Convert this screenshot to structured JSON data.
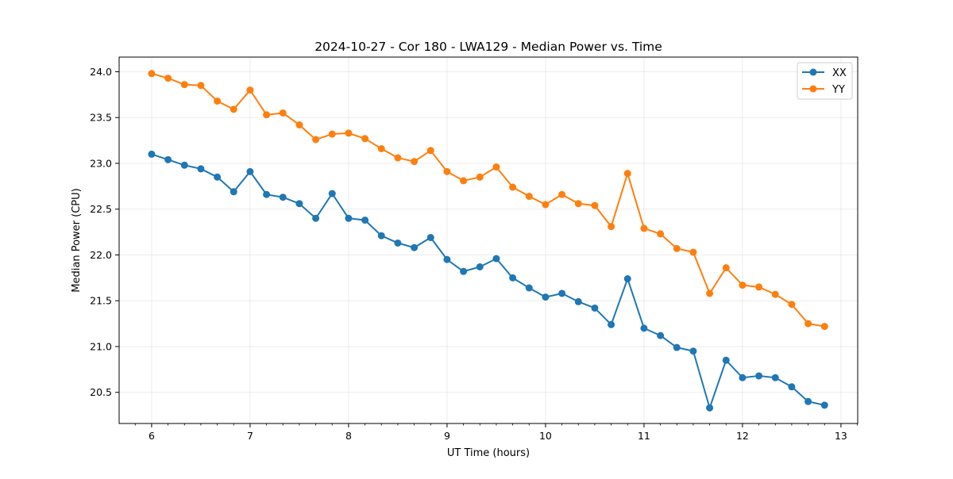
{
  "chart_data": {
    "type": "line",
    "title": "2024-10-27 - Cor 180 - LWA129 - Median Power vs. Time",
    "xlabel": "UT Time (hours)",
    "ylabel": "Median Power (CPU)",
    "xlim": [
      5.67,
      13.17
    ],
    "ylim": [
      20.16,
      24.16
    ],
    "xticks": [
      6,
      7,
      8,
      9,
      10,
      11,
      12,
      13
    ],
    "yticks": [
      20.5,
      21.0,
      21.5,
      22.0,
      22.5,
      23.0,
      23.5,
      24.0
    ],
    "ytick_labels": [
      "20.5",
      "21.0",
      "21.5",
      "22.0",
      "22.5",
      "23.0",
      "23.5",
      "24.0"
    ],
    "grid": true,
    "legend_position": "top-right",
    "x": [
      6.0,
      6.1667,
      6.3333,
      6.5,
      6.6667,
      6.8333,
      7.0,
      7.1667,
      7.3333,
      7.5,
      7.6667,
      7.8333,
      8.0,
      8.1667,
      8.3333,
      8.5,
      8.6667,
      8.8333,
      9.0,
      9.1667,
      9.3333,
      9.5,
      9.6667,
      9.8333,
      10.0,
      10.1667,
      10.3333,
      10.5,
      10.6667,
      10.8333,
      11.0,
      11.1667,
      11.3333,
      11.5,
      11.6667,
      11.8333,
      12.0,
      12.1667,
      12.3333,
      12.5,
      12.6667,
      12.8333
    ],
    "series": [
      {
        "name": "XX",
        "color": "#1f77b4",
        "values": [
          23.1,
          23.04,
          22.98,
          22.94,
          22.85,
          22.69,
          22.91,
          22.66,
          22.63,
          22.56,
          22.4,
          22.67,
          22.4,
          22.38,
          22.21,
          22.13,
          22.08,
          22.19,
          21.95,
          21.82,
          21.87,
          21.96,
          21.75,
          21.64,
          21.54,
          21.58,
          21.49,
          21.42,
          21.24,
          21.74,
          21.2,
          21.12,
          20.99,
          20.95,
          20.33,
          20.85,
          20.66,
          20.68,
          20.66,
          20.56,
          20.4,
          20.36
        ]
      },
      {
        "name": "YY",
        "color": "#ff7f0e",
        "values": [
          23.98,
          23.93,
          23.86,
          23.85,
          23.68,
          23.59,
          23.8,
          23.53,
          23.55,
          23.42,
          23.26,
          23.32,
          23.33,
          23.27,
          23.16,
          23.06,
          23.02,
          23.14,
          22.91,
          22.81,
          22.85,
          22.96,
          22.74,
          22.64,
          22.55,
          22.66,
          22.56,
          22.54,
          22.31,
          22.89,
          22.29,
          22.23,
          22.07,
          22.03,
          21.58,
          21.86,
          21.67,
          21.65,
          21.57,
          21.46,
          21.25,
          21.22
        ]
      }
    ]
  }
}
